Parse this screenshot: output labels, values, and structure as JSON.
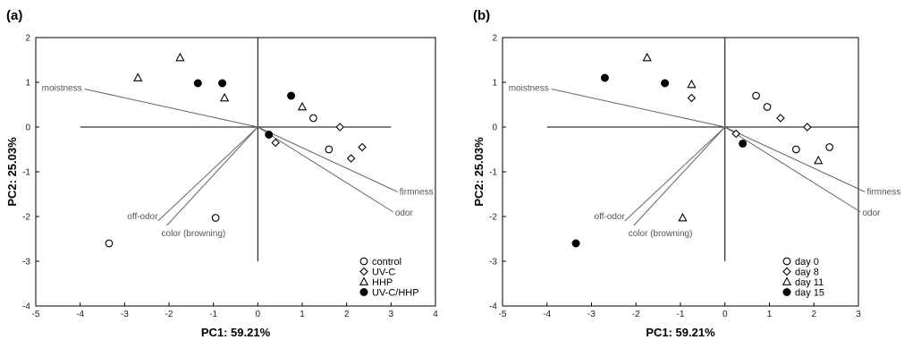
{
  "chart_data": [
    {
      "type": "scatter",
      "panel_label": "(a)",
      "xlabel": "PC1: 59.21%",
      "ylabel": "PC2: 25.03%",
      "xlim": [
        -5,
        4
      ],
      "ylim": [
        -4,
        2
      ],
      "x_ticks": [
        -5,
        -4,
        -3,
        -2,
        -1,
        0,
        1,
        2,
        3,
        4
      ],
      "y_ticks": [
        2,
        1,
        0,
        -1,
        -2,
        -3,
        -4
      ],
      "legend_position": "bottom-right",
      "series": [
        {
          "name": "control",
          "marker": "circle-open",
          "points": [
            [
              1.25,
              0.2
            ],
            [
              1.6,
              -0.5
            ],
            [
              -0.95,
              -2.03
            ],
            [
              -3.35,
              -2.6
            ]
          ]
        },
        {
          "name": "UV-C",
          "marker": "diamond-open",
          "points": [
            [
              1.85,
              0.0
            ],
            [
              2.35,
              -0.45
            ],
            [
              2.1,
              -0.7
            ],
            [
              0.4,
              -0.35
            ]
          ]
        },
        {
          "name": "HHP",
          "marker": "triangle-open",
          "points": [
            [
              -2.7,
              1.1
            ],
            [
              -1.75,
              1.55
            ],
            [
              -0.75,
              0.65
            ],
            [
              1.0,
              0.45
            ]
          ]
        },
        {
          "name": "UV-C/HHP",
          "marker": "circle-filled",
          "points": [
            [
              -1.35,
              0.98
            ],
            [
              -0.8,
              0.98
            ],
            [
              0.75,
              0.7
            ],
            [
              0.25,
              -0.17
            ]
          ]
        }
      ],
      "loadings": [
        {
          "label": "moistness",
          "x": -3.9,
          "y": 0.85
        },
        {
          "label": "firmness",
          "x": 3.15,
          "y": -1.45
        },
        {
          "label": "odor",
          "x": 3.05,
          "y": -1.9
        },
        {
          "label": "off-odor",
          "x": -2.25,
          "y": -2.1
        },
        {
          "label": "color (browning)",
          "x": -2.05,
          "y": -2.2
        }
      ]
    },
    {
      "type": "scatter",
      "panel_label": "(b)",
      "xlabel": "PC1: 59.21%",
      "ylabel": "PC2: 25.03%",
      "xlim": [
        -5,
        3
      ],
      "ylim": [
        -4,
        2
      ],
      "x_ticks": [
        -5,
        -4,
        -3,
        -2,
        -1,
        0,
        1,
        2,
        3
      ],
      "y_ticks": [
        2,
        1,
        0,
        -1,
        -2,
        -3,
        -4
      ],
      "legend_position": "bottom-right",
      "series": [
        {
          "name": "day 0",
          "marker": "circle-open",
          "points": [
            [
              0.7,
              0.7
            ],
            [
              0.95,
              0.45
            ],
            [
              1.6,
              -0.5
            ],
            [
              2.35,
              -0.45
            ]
          ]
        },
        {
          "name": "day 8",
          "marker": "diamond-open",
          "points": [
            [
              -0.75,
              0.65
            ],
            [
              1.25,
              0.2
            ],
            [
              1.85,
              0.0
            ],
            [
              0.25,
              -0.15
            ]
          ]
        },
        {
          "name": "day 11",
          "marker": "triangle-open",
          "points": [
            [
              -1.75,
              1.55
            ],
            [
              -0.75,
              0.95
            ],
            [
              2.1,
              -0.75
            ],
            [
              -0.95,
              -2.03
            ]
          ]
        },
        {
          "name": "day 15",
          "marker": "circle-filled",
          "points": [
            [
              -2.7,
              1.1
            ],
            [
              -1.35,
              0.98
            ],
            [
              0.4,
              -0.37
            ],
            [
              -3.35,
              -2.6
            ]
          ]
        }
      ],
      "loadings": [
        {
          "label": "moistness",
          "x": -3.9,
          "y": 0.85
        },
        {
          "label": "firmness",
          "x": 3.15,
          "y": -1.45
        },
        {
          "label": "odor",
          "x": 3.05,
          "y": -1.9
        },
        {
          "label": "off-odor",
          "x": -2.25,
          "y": -2.1
        },
        {
          "label": "color (browning)",
          "x": -2.05,
          "y": -2.2
        }
      ]
    }
  ]
}
